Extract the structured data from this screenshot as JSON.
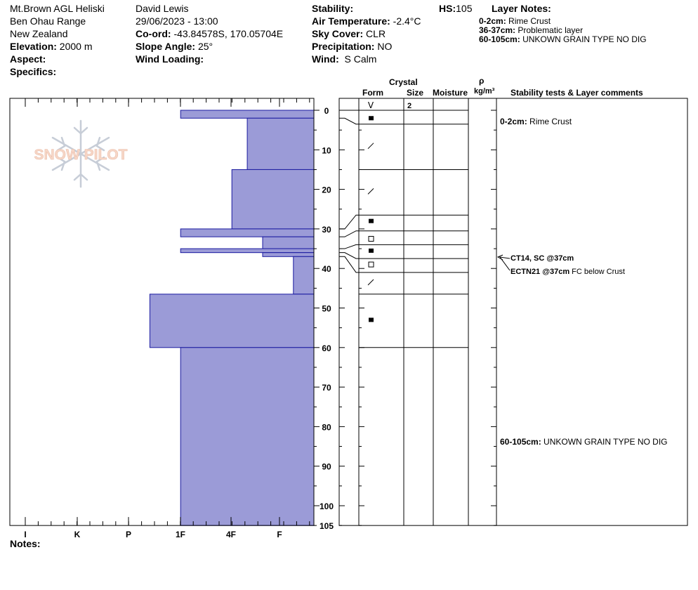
{
  "header": {
    "operation": "Mt.Brown AGL Heliski",
    "range": "Ben Ohau Range",
    "country": "New Zealand",
    "elevation_label": "Elevation:",
    "elevation": "2000 m",
    "aspect_label": "Aspect:",
    "specifics_label": "Specifics:",
    "observer": "David Lewis",
    "datetime": "29/06/2023 - 13:00",
    "coord_label": "Co-ord:",
    "coord": "-43.84578S, 170.05704E",
    "slope_label": "Slope Angle:",
    "slope": "25°",
    "wind_loading_label": "Wind Loading:",
    "stability_label": "Stability:",
    "air_temp_label": "Air Temperature:",
    "air_temp": "-2.4°C",
    "sky_label": "Sky Cover:",
    "sky": "CLR",
    "precip_label": "Precipitation:",
    "precip": "NO",
    "wind_label": "Wind:",
    "wind": "S Calm",
    "hs_label": "HS:",
    "hs": "105",
    "layer_notes_title": "Layer Notes:",
    "layer_notes": [
      {
        "range": "0-2cm:",
        "text": "Rime Crust"
      },
      {
        "range": "36-37cm:",
        "text": "Problematic layer"
      },
      {
        "range": "60-105cm:",
        "text": "UNKOWN GRAIN TYPE NO DIG"
      }
    ]
  },
  "logo_text": "SNOW PILOT",
  "notes_label": "Notes:",
  "columns": {
    "crystal": "Crystal",
    "form": "Form",
    "size": "Size",
    "moisture": "Moisture",
    "rho": "ρ",
    "density_unit": "kg/m³",
    "stability": "Stability tests & Layer comments"
  },
  "colors": {
    "hardness_fill": "#9b9bd7",
    "hardness_stroke": "#1a1aa0"
  },
  "chart_data": {
    "type": "bar",
    "orientation": "horizontal-step-profile",
    "hs_cm": 105,
    "depth_axis": {
      "min": 0,
      "max": 105,
      "ticks": [
        0,
        10,
        20,
        30,
        40,
        50,
        60,
        70,
        80,
        90,
        100,
        105
      ]
    },
    "hardness_axis": {
      "labels": [
        "I",
        "K",
        "P",
        "1F",
        "4F",
        "F"
      ]
    },
    "layers": [
      {
        "top": 0,
        "bottom": 2,
        "hardness": 2.6,
        "form": "rounded",
        "size": "2"
      },
      {
        "top": 2,
        "bottom": 15,
        "hardness": 1.3,
        "form": "rounded"
      },
      {
        "top": 15,
        "bottom": 30,
        "hardness": 1.6,
        "form": "rounded"
      },
      {
        "top": 30,
        "bottom": 32,
        "hardness": 2.6,
        "form": "faceted"
      },
      {
        "top": 32,
        "bottom": 35,
        "hardness": 1.0,
        "form": "faceted"
      },
      {
        "top": 35,
        "bottom": 36,
        "hardness": 2.6,
        "form": "faceted"
      },
      {
        "top": 36,
        "bottom": 37,
        "hardness": 1.0,
        "form": "faceted"
      },
      {
        "top": 37,
        "bottom": 46.5,
        "hardness": 0.4,
        "form": "rounded"
      },
      {
        "top": 46.5,
        "bottom": 60,
        "hardness": 3.2,
        "form": "faceted"
      },
      {
        "top": 60,
        "bottom": 105,
        "hardness": 2.6,
        "form": "unknown"
      }
    ],
    "surface_symbol": "V",
    "symbol_depths": [
      2,
      9,
      20.5,
      28,
      32.5,
      35.5,
      39,
      43.5,
      53
    ],
    "symbol_types": [
      "square-filled",
      "slash",
      "slash",
      "square-filled",
      "square-open",
      "square-filled",
      "square-open",
      "slash",
      "square-filled"
    ],
    "boundaries": [
      0,
      3.5,
      15,
      26.5,
      30.5,
      34,
      37.5,
      41,
      46.5,
      60
    ],
    "comments": [
      {
        "depth": 2.7,
        "label": "0-2cm:",
        "text": "Rime Crust"
      },
      {
        "depth": 37,
        "label": "CT14, SC @37cm",
        "text": ""
      },
      {
        "depth": 40.5,
        "label": "ECTN21 @37cm",
        "text": "FC below Crust"
      },
      {
        "depth": 83,
        "label": "60-105cm:",
        "text": "UNKOWN GRAIN TYPE NO DIG"
      }
    ]
  }
}
